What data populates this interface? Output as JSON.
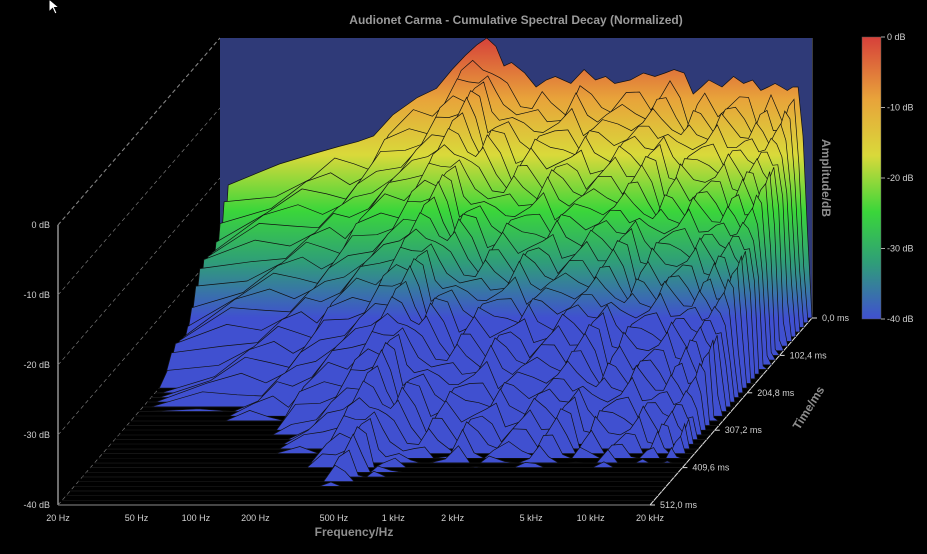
{
  "chart_data": {
    "type": "waterfall-3d",
    "title": "Audionet Carma - Cumulative Spectral Decay (Normalized)",
    "xlabel": "Frequency/Hz",
    "ylabel": "Amplitude/dB",
    "zlabel": "Time/ms",
    "x_ticks": [
      "20 Hz",
      "50 Hz",
      "100 Hz",
      "200 Hz",
      "500 Hz",
      "1 kHz",
      "2 kHz",
      "5 kHz",
      "10 kHz",
      "20 kHz"
    ],
    "x_tick_values": [
      20,
      50,
      100,
      200,
      500,
      1000,
      2000,
      5000,
      10000,
      20000
    ],
    "xlim": [
      20,
      20000
    ],
    "x_scale": "log",
    "y_ticks": [
      "0 dB",
      "-10 dB",
      "-20 dB",
      "-30 dB",
      "-40 dB"
    ],
    "y_tick_values": [
      0,
      -10,
      -20,
      -30,
      -40
    ],
    "ylim": [
      -40,
      0
    ],
    "z_ticks": [
      "0,0 ms",
      "102,4 ms",
      "204,8 ms",
      "307,2 ms",
      "409,6 ms",
      "512,0 ms"
    ],
    "z_tick_values": [
      0,
      102.4,
      204.8,
      307.2,
      409.6,
      512.0
    ],
    "zlim": [
      0,
      512
    ],
    "colorbar_ticks": [
      "0 dB",
      "-10 dB",
      "-20 dB",
      "-30 dB",
      "-40 dB"
    ],
    "colormap": [
      "#d6403a",
      "#e8a33a",
      "#d9d93a",
      "#3ad63a",
      "#2f9e78",
      "#4050d0"
    ],
    "background_wall_color": "#2f3a78",
    "initial_response": {
      "freq": [
        20,
        22,
        40,
        60,
        80,
        100,
        120,
        150,
        200,
        250,
        300,
        350,
        400,
        450,
        500,
        550,
        600,
        700,
        800,
        900,
        1000,
        1200,
        1400,
        1600,
        1800,
        2000,
        2400,
        2800,
        3200,
        3600,
        4000,
        4500,
        5000,
        5500,
        6000,
        7000,
        8000,
        9000,
        10000,
        11000,
        12000,
        13000,
        14000,
        15000,
        16000,
        17000,
        18000,
        19000,
        20000
      ],
      "db": [
        -40,
        -21,
        -18,
        -16.5,
        -15.5,
        -14.8,
        -14,
        -11,
        -8.5,
        -7.2,
        -4.5,
        -2.5,
        -1,
        0,
        -1.2,
        -4,
        -3.5,
        -5,
        -7,
        -6,
        -5.5,
        -6.5,
        -4.5,
        -6,
        -5.5,
        -6.5,
        -6,
        -5,
        -5.5,
        -5,
        -4.5,
        -5,
        -8,
        -7,
        -6,
        -7,
        -5.5,
        -6.5,
        -6,
        -7.5,
        -7,
        -6.5,
        -7,
        -7.5,
        -7,
        -7,
        -14,
        -28,
        -40
      ]
    },
    "slices": 40,
    "decay_db_per_slice": 1.05
  }
}
